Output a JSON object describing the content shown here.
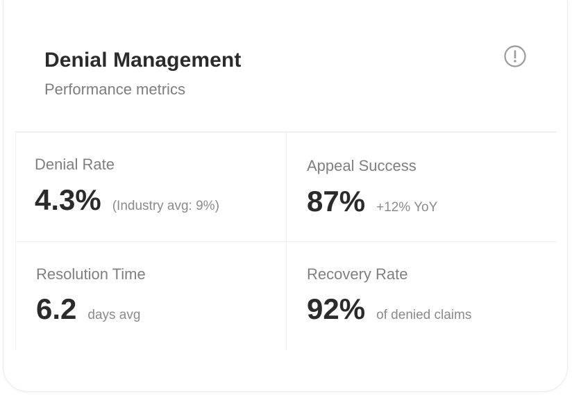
{
  "header": {
    "title": "Denial Management",
    "subtitle": "Performance metrics",
    "info_icon": "exclamation-circle-icon"
  },
  "metrics": [
    {
      "label": "Denial Rate",
      "value": "4.3%",
      "note": "(Industry avg: 9%)"
    },
    {
      "label": "Appeal Success",
      "value": "87%",
      "note": "+12% YoY"
    },
    {
      "label": "Resolution Time",
      "value": "6.2",
      "note": "days avg"
    },
    {
      "label": "Recovery Rate",
      "value": "92%",
      "note": "of denied claims"
    }
  ],
  "colors": {
    "text_primary": "#2b2b2b",
    "text_secondary": "#7f7f7f",
    "icon": "#9a9a9a",
    "divider": "#f0f0f0"
  }
}
